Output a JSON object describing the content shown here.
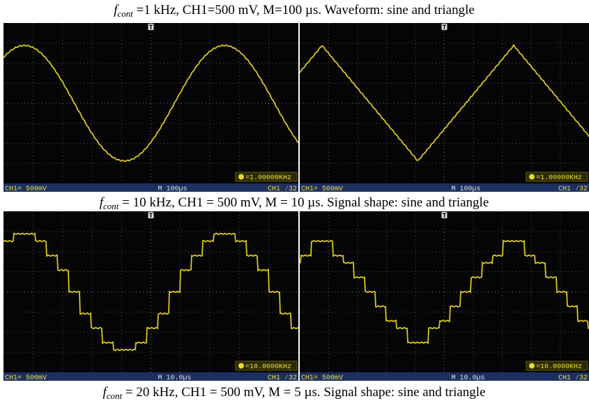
{
  "captions": [
    {
      "symbol": "f",
      "subscript": "cont",
      "text": " =1 kHz, CH1=500 mV, M=100 µs. Waveform: sine and triangle"
    },
    {
      "symbol": "f",
      "subscript": "cont",
      "text": " = 10 kHz, CH1 = 500 mV, M = 10 µs. Signal shape: sine and triangle"
    },
    {
      "symbol": "f",
      "subscript": "cont",
      "text": " = 20 kHz, CH1 = 500 mV, M = 5 µs. Signal shape: sine and triangle"
    }
  ],
  "panels": [
    {
      "trigger_marker": "T",
      "frequency": "=1.00000KHz",
      "channel": "CH1= 500mV",
      "timebase": "M 100µs",
      "trigger": "CH1 ∕32"
    },
    {
      "trigger_marker": "T",
      "frequency": "=1.00000KHz",
      "channel": "CH1= 500mV",
      "timebase": "M 100µs",
      "trigger": "CH1 ∕32"
    },
    {
      "trigger_marker": "T",
      "frequency": "=10.0000KHz",
      "channel": "CH1= 500mV",
      "timebase": "M 10.0µs",
      "trigger": "CH1 ∕32"
    },
    {
      "trigger_marker": "T",
      "frequency": "=10.0000KHz",
      "channel": "CH1= 500mV",
      "timebase": "M 10.0µs",
      "trigger": "CH1 ∕32"
    }
  ]
}
